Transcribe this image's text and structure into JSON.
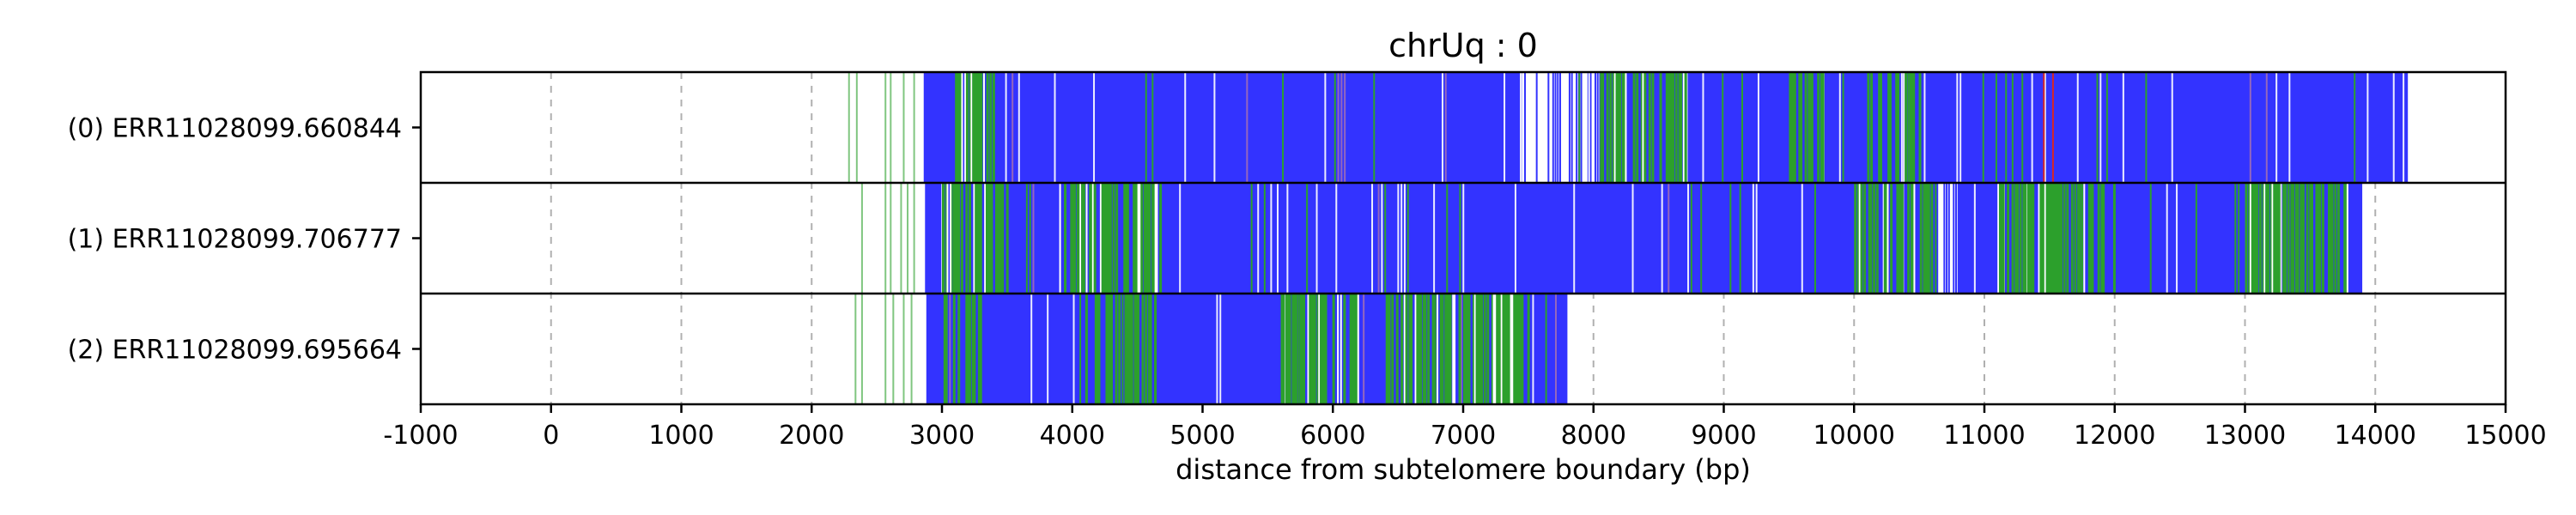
{
  "chart_data": {
    "type": "bar",
    "title": "chrUq : 0",
    "xlabel": "distance from subtelomere boundary (bp)",
    "xlim": [
      -1000,
      15000
    ],
    "xticks": [
      "-1000",
      "0",
      "1000",
      "2000",
      "3000",
      "4000",
      "5000",
      "6000",
      "7000",
      "8000",
      "9000",
      "10000",
      "11000",
      "12000",
      "13000",
      "14000",
      "15000"
    ],
    "grid": "vertical dashed",
    "colors": {
      "blue": "#3333ff",
      "green": "#2ca02c",
      "purple": "#9467bd",
      "red": "#d62728",
      "gridline": "#b0b0b0"
    },
    "reads": [
      {
        "label": "(0) ERR11028099.660844",
        "blue_start": 2860,
        "blue_end": 14250,
        "sparse_blue_region": [
          7450,
          8050
        ],
        "sparse_green_lines": [
          2280,
          2340,
          2560,
          2600,
          2700,
          2780
        ],
        "dense_green_regions": [
          [
            3100,
            3400
          ],
          [
            8050,
            8700
          ],
          [
            9500,
            9800
          ],
          [
            10100,
            10500
          ]
        ]
      },
      {
        "label": "(1) ERR11028099.706777",
        "blue_start": 2870,
        "blue_end": 13900,
        "sparse_blue_region": [
          10650,
          10800
        ],
        "sparse_green_lines": [
          2380,
          2560,
          2600,
          2680,
          2730,
          2780
        ],
        "dense_green_regions": [
          [
            3000,
            3500
          ],
          [
            3900,
            4700
          ],
          [
            10000,
            10600
          ],
          [
            11100,
            12000
          ],
          [
            13000,
            13800
          ]
        ]
      },
      {
        "label": "(2) ERR11028099.695664",
        "blue_start": 2880,
        "blue_end": 7800,
        "sparse_blue_region": null,
        "sparse_green_lines": [
          2330,
          2380,
          2560,
          2620,
          2700,
          2760
        ],
        "dense_green_regions": [
          [
            3000,
            3300
          ],
          [
            4100,
            4650
          ],
          [
            5600,
            6200
          ],
          [
            6400,
            7500
          ]
        ]
      }
    ]
  }
}
